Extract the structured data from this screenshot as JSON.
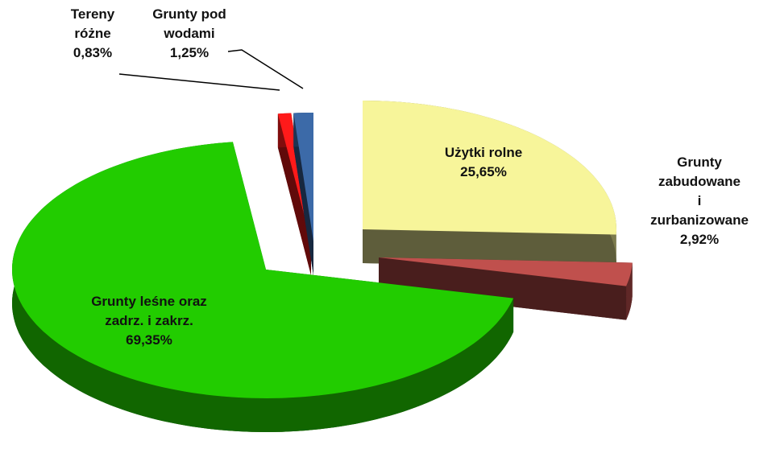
{
  "chart_data": {
    "type": "pie",
    "categories": [
      "Użytki rolne",
      "Grunty\nzabudowane\ni zurbanizowane",
      "Grunty leśne oraz\nzadrz. i zakrz.",
      "Tereny\nróżne",
      "Grunty pod\nwodami"
    ],
    "values": [
      25.65,
      2.92,
      69.35,
      0.83,
      1.25
    ],
    "value_labels": [
      "25,65%",
      "2,92%",
      "69,35%",
      "0,83%",
      "1,25%"
    ],
    "colors": [
      "#f7f59a",
      "#c0504d",
      "#22cc00",
      "#ff1a1a",
      "#3c6aa8"
    ]
  }
}
